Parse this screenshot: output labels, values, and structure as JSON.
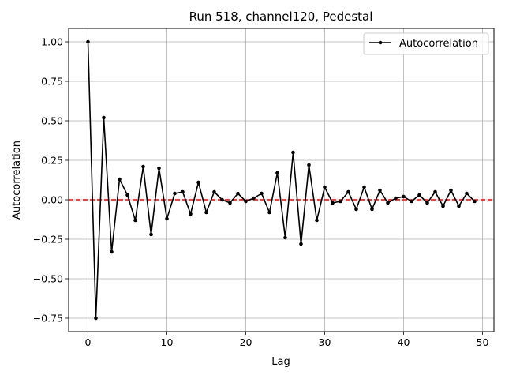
{
  "chart_data": {
    "type": "line",
    "title": "Run 518, channel120, Pedestal",
    "xlabel": "Lag",
    "ylabel": "Autocorrelation",
    "xlim": [
      -2.45,
      51.45
    ],
    "ylim": [
      -0.835,
      1.085
    ],
    "xticks": [
      0,
      10,
      20,
      30,
      40,
      50
    ],
    "yticks": [
      -0.75,
      -0.5,
      -0.25,
      0.0,
      0.25,
      0.5,
      0.75,
      1.0
    ],
    "ytick_labels": [
      "−0.75",
      "−0.50",
      "−0.25",
      "0.00",
      "0.25",
      "0.50",
      "0.75",
      "1.00"
    ],
    "grid": true,
    "legend_position": "top-right",
    "reference_line": {
      "y": 0.0,
      "color": "#ff0000",
      "style": "dashed"
    },
    "series": [
      {
        "name": "Autocorrelation",
        "color": "#000000",
        "marker": "circle",
        "x": [
          0,
          1,
          2,
          3,
          4,
          5,
          6,
          7,
          8,
          9,
          10,
          11,
          12,
          13,
          14,
          15,
          16,
          17,
          18,
          19,
          20,
          21,
          22,
          23,
          24,
          25,
          26,
          27,
          28,
          29,
          30,
          31,
          32,
          33,
          34,
          35,
          36,
          37,
          38,
          39,
          40,
          41,
          42,
          43,
          44,
          45,
          46,
          47,
          48,
          49
        ],
        "y": [
          1.0,
          -0.75,
          0.52,
          -0.33,
          0.13,
          0.03,
          -0.13,
          0.21,
          -0.22,
          0.2,
          -0.12,
          0.04,
          0.05,
          -0.09,
          0.11,
          -0.08,
          0.05,
          0.0,
          -0.02,
          0.04,
          -0.01,
          0.01,
          0.04,
          -0.08,
          0.17,
          -0.24,
          0.3,
          -0.28,
          0.22,
          -0.13,
          0.08,
          -0.02,
          -0.01,
          0.05,
          -0.06,
          0.08,
          -0.06,
          0.06,
          -0.02,
          0.01,
          0.02,
          -0.01,
          0.03,
          -0.02,
          0.05,
          -0.04,
          0.06,
          -0.04,
          0.04,
          -0.01
        ]
      }
    ]
  }
}
